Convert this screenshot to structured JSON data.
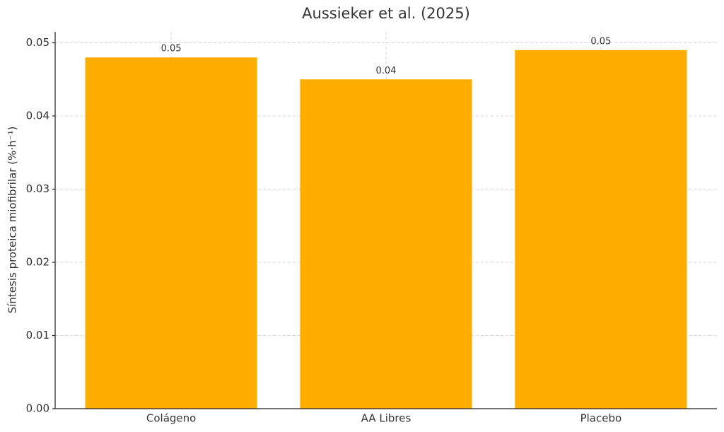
{
  "chart_data": {
    "type": "bar",
    "title": "Aussieker et al. (2025)",
    "y_label": "Síntesis proteica miofibrilar (%·h⁻¹)",
    "categories": [
      "Colágeno",
      "AA Libres",
      "Placebo"
    ],
    "values": [
      0.048,
      0.045,
      0.049
    ],
    "value_labels": [
      "0.05",
      "0.04",
      "0.05"
    ],
    "color": "#ffae00",
    "ylim": [
      0,
      0.0515
    ],
    "yticks": [
      {
        "value": 0,
        "label": "0.00"
      },
      {
        "value": 0.01,
        "label": "0.01"
      },
      {
        "value": 0.02,
        "label": "0.02"
      },
      {
        "value": 0.03,
        "label": "0.03"
      },
      {
        "value": 0.04,
        "label": "0.04"
      },
      {
        "value": 0.05,
        "label": "0.05"
      }
    ],
    "grid": true
  }
}
